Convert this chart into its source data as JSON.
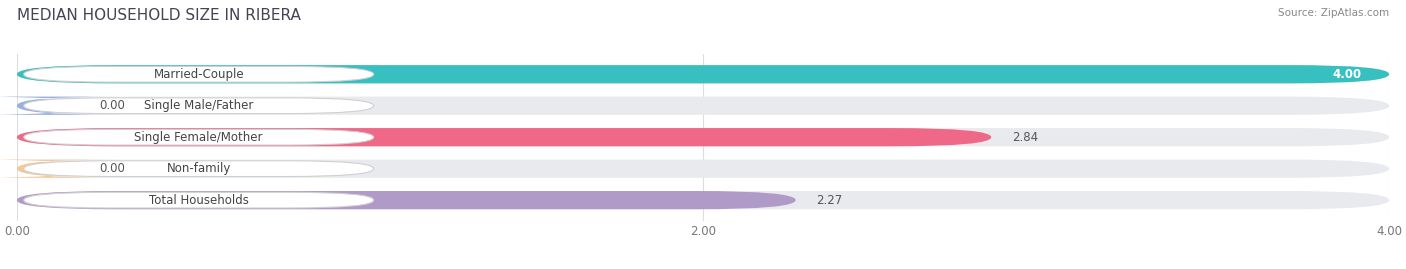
{
  "title": "MEDIAN HOUSEHOLD SIZE IN RIBERA",
  "source": "Source: ZipAtlas.com",
  "categories": [
    "Married-Couple",
    "Single Male/Father",
    "Single Female/Mother",
    "Non-family",
    "Total Households"
  ],
  "values": [
    4.0,
    0.0,
    2.84,
    0.0,
    2.27
  ],
  "bar_colors": [
    "#38bfc0",
    "#9ab0e0",
    "#f06888",
    "#f5c898",
    "#b09ac8"
  ],
  "bg_color": "#e8eaed",
  "xlim": [
    0,
    4.0
  ],
  "xticks": [
    0.0,
    2.0,
    4.0
  ],
  "xtick_labels": [
    "0.00",
    "2.00",
    "4.00"
  ],
  "title_fontsize": 11,
  "label_fontsize": 8.5,
  "value_fontsize": 8.5,
  "background_color": "#ffffff"
}
